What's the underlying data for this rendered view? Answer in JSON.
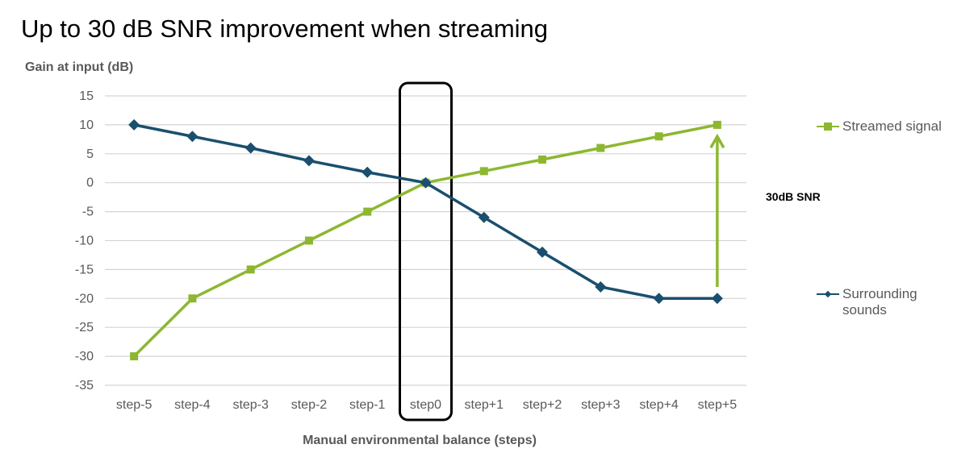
{
  "chart_data": {
    "type": "line",
    "title": "Up to 30 dB SNR improvement when streaming",
    "ylabel": "Gain at input (dB)",
    "xlabel": "Manual environmental balance (steps)",
    "categories": [
      "step-5",
      "step-4",
      "step-3",
      "step-2",
      "step-1",
      "step0",
      "step+1",
      "step+2",
      "step+3",
      "step+4",
      "step+5"
    ],
    "y_ticks": [
      "15",
      "10",
      "5",
      "0",
      "-5",
      "-10",
      "-15",
      "-20",
      "-25",
      "-30",
      "-35"
    ],
    "ylim": [
      -35,
      15
    ],
    "y_step": 5,
    "grid": "horizontal",
    "legend_position": "right",
    "highlight_category": "step0",
    "series": [
      {
        "name": "Streamed signal",
        "marker": "square",
        "color": "#8DB731",
        "values": [
          -30,
          -20,
          -15,
          -10,
          -5,
          0,
          2,
          4,
          6,
          8,
          10
        ]
      },
      {
        "name": "Surrounding sounds",
        "name_lines": [
          "Surrounding",
          "sounds"
        ],
        "marker": "diamond",
        "color": "#1A4F6E",
        "values": [
          10,
          8,
          6,
          3.8,
          1.8,
          0,
          -6,
          -12,
          -18,
          -20,
          -20
        ]
      }
    ],
    "annotation": {
      "text": "30dB SNR",
      "from_value": -18,
      "to_value": 8,
      "category": "step+5"
    }
  }
}
